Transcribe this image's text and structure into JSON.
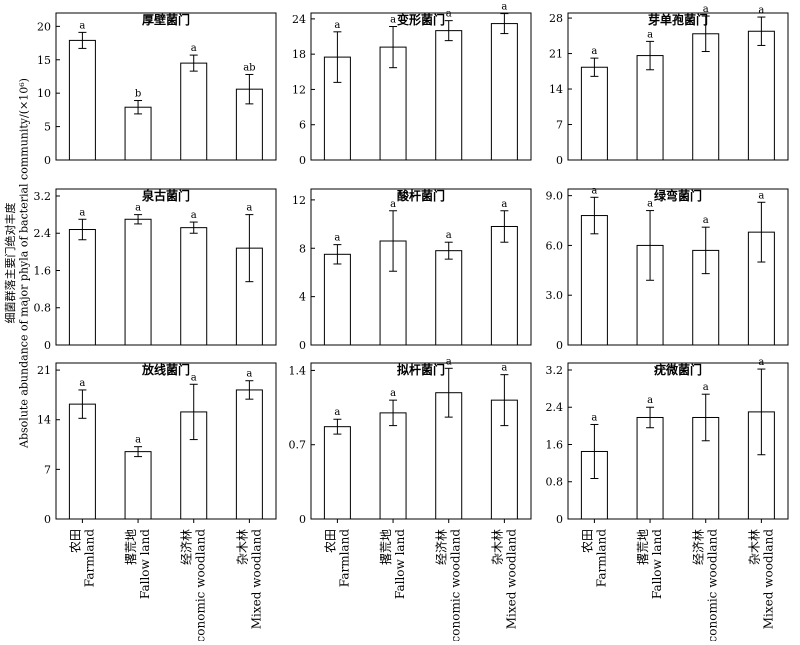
{
  "y_axis_label_cn": "细菌群落主要门绝对丰度",
  "y_axis_label_en": "Absolute abundance of major phyla of bacterial community/(×10⁶)",
  "x_categories": [
    {
      "cn": "农田",
      "en": "Farmland"
    },
    {
      "cn": "撂荒地",
      "en": "Fallow land"
    },
    {
      "cn": "经济林",
      "en": "Economic woodland"
    },
    {
      "cn": "杂木林",
      "en": "Mixed woodland"
    }
  ],
  "chart_data": [
    {
      "type": "bar",
      "title": "厚壁菌门",
      "categories": [
        "农田",
        "撂荒地",
        "经济林",
        "杂木林"
      ],
      "values": [
        17.9,
        7.9,
        14.5,
        10.6
      ],
      "errors": [
        1.2,
        1.0,
        1.2,
        2.2
      ],
      "sig": [
        "a",
        "b",
        "a",
        "ab"
      ],
      "ylim": [
        0,
        22
      ],
      "yticks": [
        0,
        5,
        10,
        15,
        20
      ],
      "ytick_labels": [
        "0",
        "5",
        "10",
        "15",
        "20"
      ]
    },
    {
      "type": "bar",
      "title": "变形菌门",
      "categories": [
        "农田",
        "撂荒地",
        "经济林",
        "杂木林"
      ],
      "values": [
        17.5,
        19.2,
        22.0,
        23.2
      ],
      "errors": [
        4.3,
        3.5,
        1.7,
        1.7
      ],
      "sig": [
        "a",
        "a",
        "a",
        "a"
      ],
      "ylim": [
        0,
        25
      ],
      "yticks": [
        0,
        6,
        12,
        18,
        24
      ],
      "ytick_labels": [
        "0",
        "6",
        "12",
        "18",
        "24"
      ]
    },
    {
      "type": "bar",
      "title": "芽单孢菌门",
      "categories": [
        "农田",
        "撂荒地",
        "经济林",
        "杂木林"
      ],
      "values": [
        18.3,
        20.6,
        24.9,
        25.4
      ],
      "errors": [
        1.8,
        2.8,
        3.5,
        2.8
      ],
      "sig": [
        "a",
        "a",
        "a",
        "a"
      ],
      "ylim": [
        0,
        29
      ],
      "yticks": [
        0,
        7,
        14,
        21,
        28
      ],
      "ytick_labels": [
        "0",
        "7",
        "14",
        "21",
        "28"
      ]
    },
    {
      "type": "bar",
      "title": "泉古菌门",
      "categories": [
        "农田",
        "撂荒地",
        "经济林",
        "杂木林"
      ],
      "values": [
        2.48,
        2.7,
        2.52,
        2.08
      ],
      "errors": [
        0.22,
        0.1,
        0.12,
        0.72
      ],
      "sig": [
        "a",
        "a",
        "a",
        "a"
      ],
      "ylim": [
        0,
        3.35
      ],
      "yticks": [
        0,
        0.8,
        1.6,
        2.4,
        3.2
      ],
      "ytick_labels": [
        "0",
        "0.8",
        "1.6",
        "2.4",
        "3.2"
      ]
    },
    {
      "type": "bar",
      "title": "酸杆菌门",
      "categories": [
        "农田",
        "撂荒地",
        "经济林",
        "杂木林"
      ],
      "values": [
        7.5,
        8.6,
        7.8,
        9.8
      ],
      "errors": [
        0.8,
        2.5,
        0.7,
        1.3
      ],
      "sig": [
        "a",
        "a",
        "a",
        "a"
      ],
      "ylim": [
        0,
        12.9
      ],
      "yticks": [
        0,
        4,
        8,
        12
      ],
      "ytick_labels": [
        "0",
        "4",
        "8",
        "12"
      ]
    },
    {
      "type": "bar",
      "title": "绿弯菌门",
      "categories": [
        "农田",
        "撂荒地",
        "经济林",
        "杂木林"
      ],
      "values": [
        7.8,
        6.0,
        5.7,
        6.8
      ],
      "errors": [
        1.1,
        2.1,
        1.4,
        1.8
      ],
      "sig": [
        "a",
        "a",
        "a",
        "a"
      ],
      "ylim": [
        0,
        9.4
      ],
      "yticks": [
        0,
        3,
        6,
        9
      ],
      "ytick_labels": [
        "0",
        "3.0",
        "6.0",
        "9.0"
      ]
    },
    {
      "type": "bar",
      "title": "放线菌门",
      "categories": [
        "农田",
        "撂荒地",
        "经济林",
        "杂木林"
      ],
      "values": [
        16.2,
        9.5,
        15.1,
        18.2
      ],
      "errors": [
        2.0,
        0.7,
        3.9,
        1.3
      ],
      "sig": [
        "a",
        "a",
        "a",
        "a"
      ],
      "ylim": [
        0,
        22
      ],
      "yticks": [
        0,
        7,
        14,
        21
      ],
      "ytick_labels": [
        "0",
        "7",
        "14",
        "21"
      ]
    },
    {
      "type": "bar",
      "title": "拟杆菌门",
      "categories": [
        "农田",
        "撂荒地",
        "经济林",
        "杂木林"
      ],
      "values": [
        0.87,
        1.0,
        1.19,
        1.12
      ],
      "errors": [
        0.07,
        0.12,
        0.23,
        0.24
      ],
      "sig": [
        "a",
        "a",
        "a",
        "a"
      ],
      "ylim": [
        0,
        1.47
      ],
      "yticks": [
        0,
        0.7,
        1.4
      ],
      "ytick_labels": [
        "0",
        "0.7",
        "1.4"
      ]
    },
    {
      "type": "bar",
      "title": "疣微菌门",
      "categories": [
        "农田",
        "撂荒地",
        "经济林",
        "杂木林"
      ],
      "values": [
        1.45,
        2.18,
        2.18,
        2.3
      ],
      "errors": [
        0.58,
        0.22,
        0.5,
        0.92
      ],
      "sig": [
        "a",
        "a",
        "a",
        "a"
      ],
      "ylim": [
        0,
        3.35
      ],
      "yticks": [
        0,
        0.8,
        1.6,
        2.4,
        3.2
      ],
      "ytick_labels": [
        "0",
        "0.8",
        "1.6",
        "2.4",
        "3.2"
      ]
    }
  ]
}
